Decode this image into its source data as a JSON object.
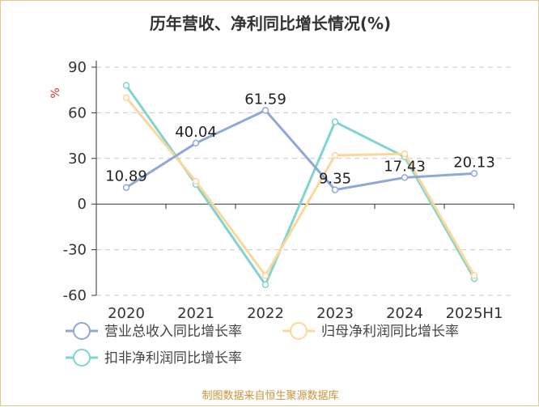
{
  "chart_data": {
    "type": "line",
    "title": "历年营收、净利同比增长情况(%)",
    "ylabel": "%",
    "xlabel": "",
    "categories": [
      "2020",
      "2021",
      "2022",
      "2023",
      "2024",
      "2025H1"
    ],
    "ylim": [
      -60,
      90
    ],
    "yticks": [
      90,
      60,
      30,
      0,
      -30,
      -60
    ],
    "yticks_labels": [
      "90",
      "60",
      "30",
      "0",
      "-30",
      "-60"
    ],
    "grid": true,
    "series": [
      {
        "name": "营业总收入同比增长率",
        "color": "#8fa8d6",
        "values": [
          10.89,
          40.04,
          61.59,
          9.35,
          17.43,
          20.13
        ],
        "labels": [
          "10.89",
          "40.04",
          "61.59",
          "9.35",
          "17.43",
          "20.13"
        ]
      },
      {
        "name": "归母净利润同比增长率",
        "color": "#fbd79a",
        "values": [
          70,
          15,
          -47,
          32,
          33,
          -47
        ]
      },
      {
        "name": "扣非净利润同比增长率",
        "color": "#7fd4d0",
        "values": [
          78,
          13,
          -53,
          54,
          31,
          -49
        ]
      }
    ],
    "legend_position": "bottom",
    "source": "制图数据来自恒生聚源数据库"
  }
}
